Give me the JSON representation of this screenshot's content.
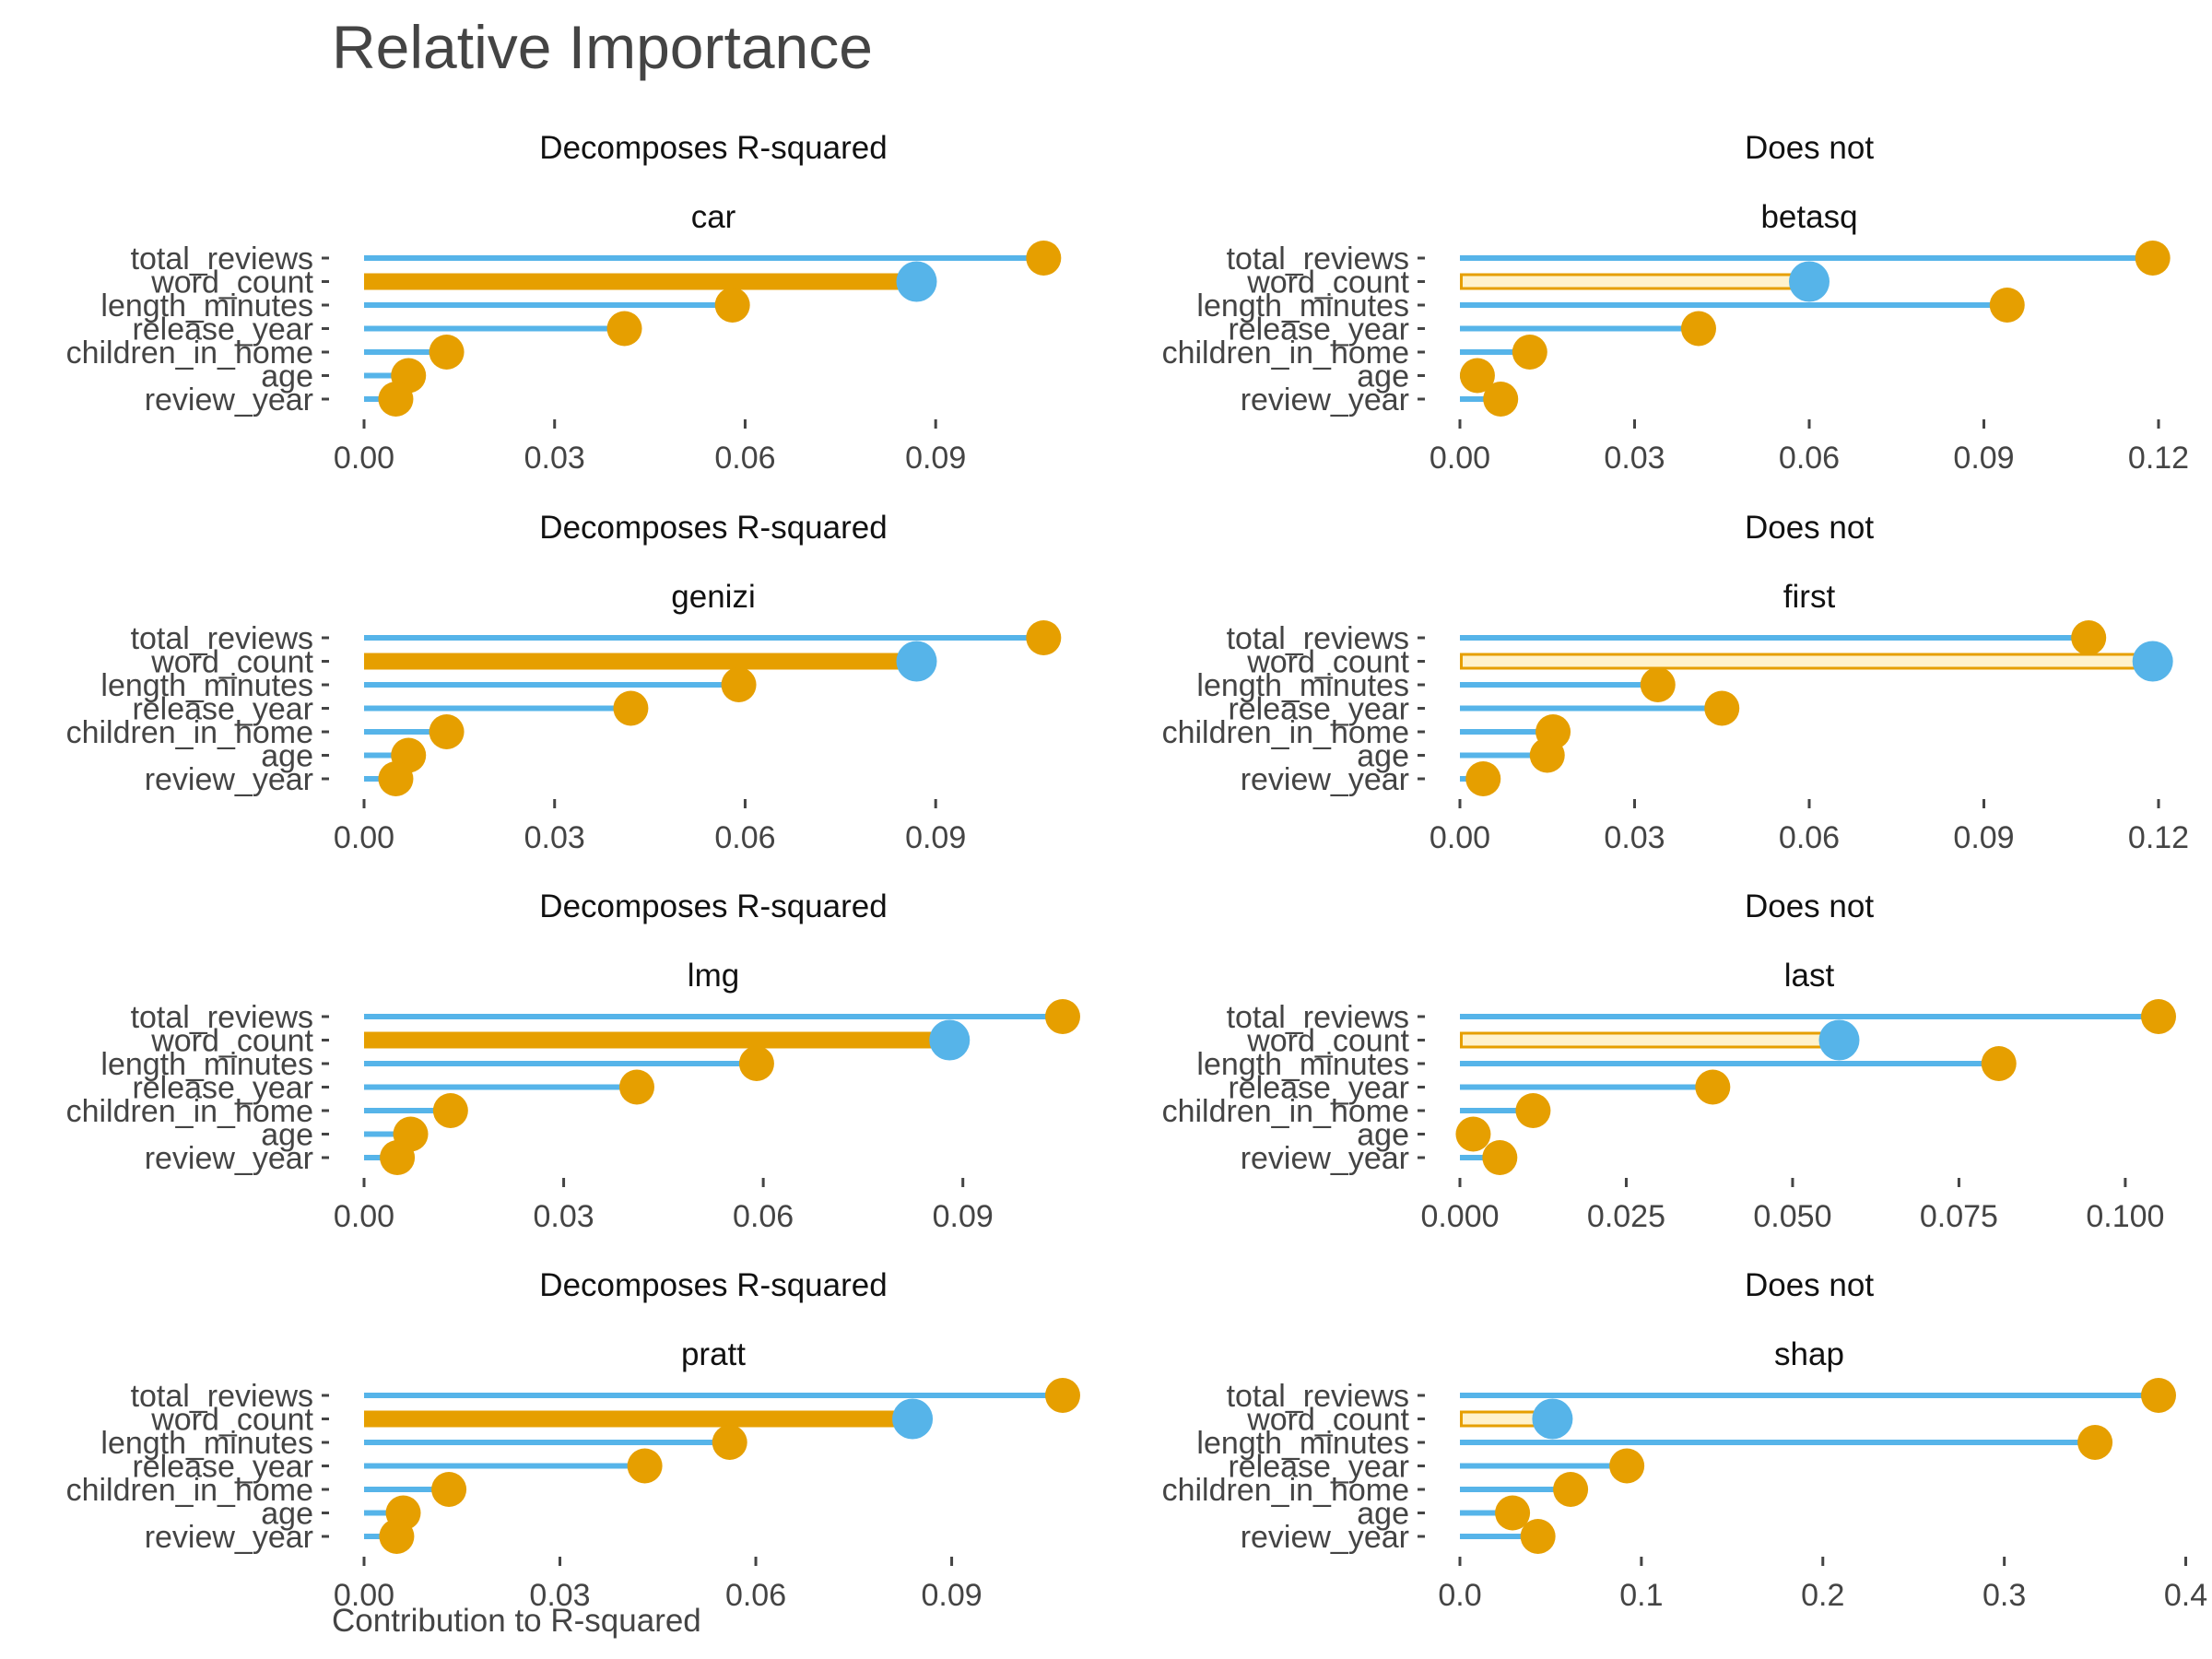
{
  "colors": {
    "line": "#56B4E9",
    "highlight_bar": "#E69F00",
    "hollow_fill": "#FFF2CC",
    "dot_default": "#E69F00",
    "dot_highlight": "#56B4E9",
    "text": "#444444"
  },
  "chart_data": {
    "type": "lollipop",
    "title": "Relative Importance",
    "xlabel": "Contribution to R-squared",
    "highlight_category": "word_count",
    "categories": [
      "total_reviews",
      "word_count",
      "length_minutes",
      "release_year",
      "children_in_home",
      "age",
      "review_year"
    ],
    "panels": [
      {
        "group": "Decomposes R-squared",
        "method": "car",
        "style": "solid",
        "xlim": [
          0,
          0.11
        ],
        "ticks": [
          "0.00",
          "0.03",
          "0.06",
          "0.09"
        ],
        "values": [
          0.107,
          0.087,
          0.058,
          0.041,
          0.013,
          0.007,
          0.005
        ]
      },
      {
        "group": "Does not",
        "method": "betasq",
        "style": "hollow",
        "xlim": [
          0,
          0.12
        ],
        "ticks": [
          "0.00",
          "0.03",
          "0.06",
          "0.09",
          "0.12"
        ],
        "values": [
          0.119,
          0.06,
          0.094,
          0.041,
          0.012,
          0.003,
          0.007
        ]
      },
      {
        "group": "Decomposes R-squared",
        "method": "genizi",
        "style": "solid",
        "xlim": [
          0,
          0.11
        ],
        "ticks": [
          "0.00",
          "0.03",
          "0.06",
          "0.09"
        ],
        "values": [
          0.107,
          0.087,
          0.059,
          0.042,
          0.013,
          0.007,
          0.005
        ]
      },
      {
        "group": "Does not",
        "method": "first",
        "style": "hollow",
        "xlim": [
          0,
          0.12
        ],
        "ticks": [
          "0.00",
          "0.03",
          "0.06",
          "0.09",
          "0.12"
        ],
        "values": [
          0.108,
          0.119,
          0.034,
          0.045,
          0.016,
          0.015,
          0.004
        ]
      },
      {
        "group": "Decomposes R-squared",
        "method": "lmg",
        "style": "solid",
        "xlim": [
          0,
          0.105
        ],
        "ticks": [
          "0.00",
          "0.03",
          "0.06",
          "0.09"
        ],
        "values": [
          0.105,
          0.088,
          0.059,
          0.041,
          0.013,
          0.007,
          0.005
        ]
      },
      {
        "group": "Does not",
        "method": "last",
        "style": "hollow",
        "xlim": [
          0,
          0.105
        ],
        "ticks": [
          "0.000",
          "0.025",
          "0.050",
          "0.075",
          "0.100"
        ],
        "values": [
          0.105,
          0.057,
          0.081,
          0.038,
          0.011,
          0.002,
          0.006
        ]
      },
      {
        "group": "Decomposes R-squared",
        "method": "pratt",
        "style": "solid",
        "xlim": [
          0,
          0.107
        ],
        "ticks": [
          "0.00",
          "0.03",
          "0.06",
          "0.09"
        ],
        "values": [
          0.107,
          0.084,
          0.056,
          0.043,
          0.013,
          0.006,
          0.005
        ]
      },
      {
        "group": "Does not",
        "method": "shap",
        "style": "hollow",
        "xlim": [
          0,
          0.385
        ],
        "ticks": [
          "0.0",
          "0.1",
          "0.2",
          "0.3",
          "0.4"
        ],
        "values": [
          0.385,
          0.051,
          0.35,
          0.092,
          0.061,
          0.029,
          0.043
        ]
      }
    ]
  }
}
